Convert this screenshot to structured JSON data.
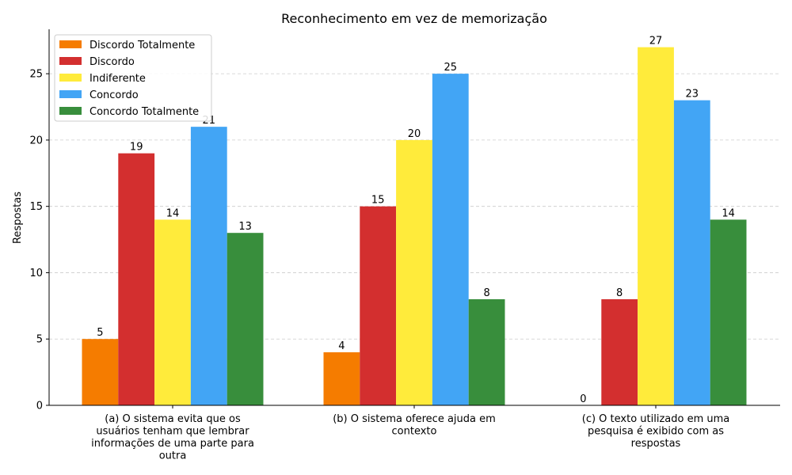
{
  "chart_data": {
    "type": "bar",
    "title": "Reconhecimento em vez de memorização",
    "ylabel": "Respostas",
    "xlabel": "",
    "ylim": [
      0,
      28.35
    ],
    "yticks": [
      0,
      5,
      10,
      15,
      20,
      25
    ],
    "grid": "y-dashed",
    "legend_position": "top-left",
    "categories": [
      [
        "(a) O sistema evita que os",
        "usuários tenham que lembrar",
        "informações de uma parte para",
        "outra"
      ],
      [
        "(b) O sistema oferece ajuda em",
        "contexto"
      ],
      [
        "(c) O texto utilizado em uma",
        "pesquisa é exibido com as",
        "respostas"
      ]
    ],
    "series": [
      {
        "name": "Discordo Totalmente",
        "color": "#f57c00",
        "values": [
          5,
          4,
          0
        ]
      },
      {
        "name": "Discordo",
        "color": "#d32f2f",
        "values": [
          19,
          15,
          8
        ]
      },
      {
        "name": "Indiferente",
        "color": "#ffeb3b",
        "values": [
          14,
          20,
          27
        ]
      },
      {
        "name": "Concordo",
        "color": "#42a5f5",
        "values": [
          21,
          25,
          23
        ]
      },
      {
        "name": "Concordo Totalmente",
        "color": "#388e3c",
        "values": [
          13,
          8,
          14
        ]
      }
    ]
  }
}
